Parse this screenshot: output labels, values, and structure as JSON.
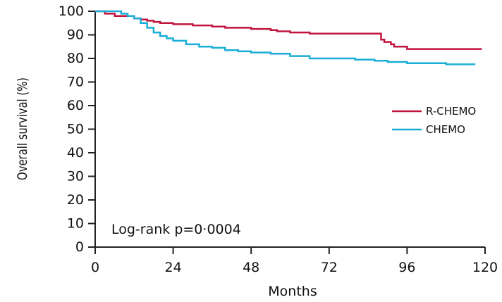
{
  "chart_data": {
    "type": "line",
    "title": "",
    "xlabel": "Months",
    "ylabel": "Overall survival (%)",
    "xlim": [
      0,
      120
    ],
    "ylim": [
      0,
      100
    ],
    "x_ticks": [
      "0",
      "24",
      "48",
      "72",
      "96",
      "120"
    ],
    "y_ticks": [
      "0",
      "10",
      "20",
      "30",
      "40",
      "50",
      "60",
      "70",
      "80",
      "90",
      "100"
    ],
    "annotation": "Log-rank p=0·0004",
    "legend_position": "right",
    "grid": false,
    "series": [
      {
        "name": "R-CHEMO",
        "color": "#c0143c",
        "x": [
          0,
          3,
          6,
          8,
          12,
          14,
          16,
          18,
          20,
          24,
          30,
          36,
          40,
          48,
          54,
          56,
          60,
          66,
          72,
          78,
          84,
          87,
          88,
          89,
          90,
          91,
          92,
          96,
          108,
          119
        ],
        "y": [
          100,
          99,
          98,
          98,
          97,
          96.5,
          96,
          95.5,
          95,
          94.5,
          94,
          93.5,
          93,
          92.5,
          92,
          91.5,
          91,
          90.5,
          90.5,
          90.5,
          90.5,
          90.5,
          88,
          87,
          87,
          86,
          85,
          84,
          84,
          84
        ]
      },
      {
        "name": "CHEMO",
        "color": "#1aaed6",
        "x": [
          0,
          4,
          8,
          10,
          12,
          14,
          16,
          18,
          20,
          22,
          24,
          28,
          32,
          36,
          40,
          44,
          48,
          54,
          60,
          66,
          72,
          80,
          86,
          90,
          96,
          108,
          117
        ],
        "y": [
          100,
          100,
          99,
          98,
          97,
          95,
          93,
          91,
          89.5,
          88.5,
          87.5,
          86,
          85,
          84.5,
          83.5,
          83,
          82.5,
          82,
          81,
          80,
          80,
          79.5,
          79,
          78.5,
          78,
          77.5,
          77.5
        ]
      }
    ]
  }
}
